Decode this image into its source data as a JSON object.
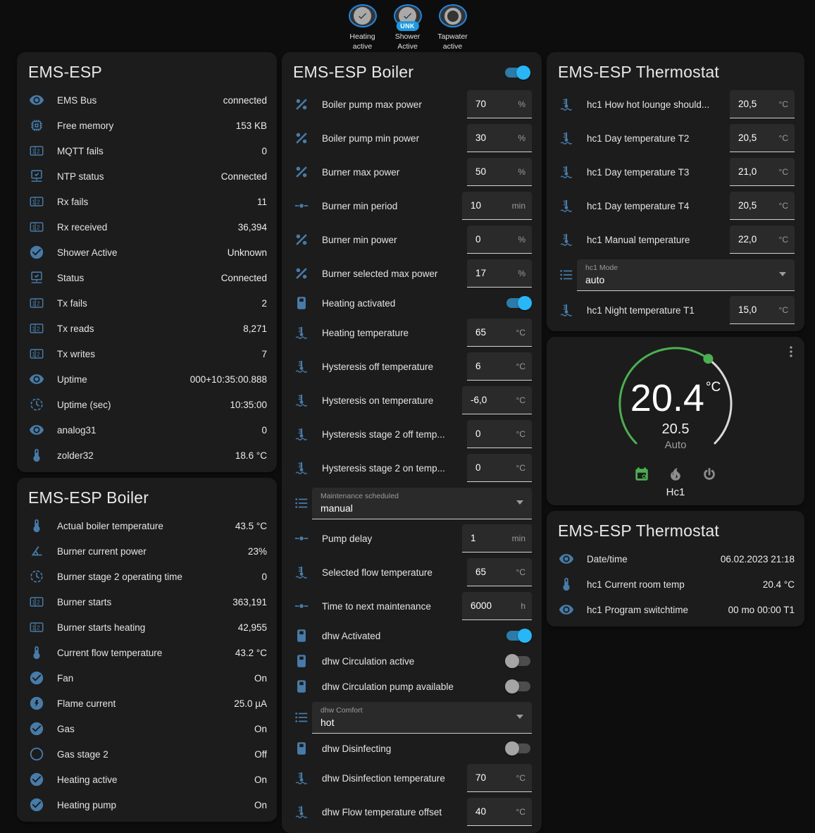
{
  "colors": {
    "page_background": "#0d0d0d",
    "card_background": "#1c1c1c",
    "icon_blue": "#477ba8",
    "badge_ring_blue": "#1e88e5",
    "badge_pill_blue": "#1e9ae0",
    "toggle_on_blue": "#29b6f6",
    "gauge_green": "#4caf50",
    "gauge_track_gray": "#d9d9d9"
  },
  "header_badges": [
    {
      "icon": "check",
      "line1": "Heating",
      "line2": "active"
    },
    {
      "icon": "check",
      "badge": "UNK",
      "line1": "Shower",
      "line2": "Active"
    },
    {
      "icon": "ring",
      "line1": "Tapwater",
      "line2": "active"
    }
  ],
  "cards": {
    "system": {
      "title": "EMS-ESP",
      "rows": [
        {
          "type": "sensor",
          "icon": "eye",
          "label": "EMS Bus",
          "value": "connected"
        },
        {
          "type": "sensor",
          "icon": "chip",
          "label": "Free memory",
          "value": "153 KB"
        },
        {
          "type": "sensor",
          "icon": "counter",
          "label": "MQTT fails",
          "value": "0"
        },
        {
          "type": "sensor",
          "icon": "network",
          "label": "NTP status",
          "value": "Connected"
        },
        {
          "type": "sensor",
          "icon": "counter",
          "label": "Rx fails",
          "value": "11"
        },
        {
          "type": "sensor",
          "icon": "counter",
          "label": "Rx received",
          "value": "36,394"
        },
        {
          "type": "sensor",
          "icon": "check-circle",
          "label": "Shower Active",
          "value": "Unknown"
        },
        {
          "type": "sensor",
          "icon": "network",
          "label": "Status",
          "value": "Connected"
        },
        {
          "type": "sensor",
          "icon": "counter",
          "label": "Tx fails",
          "value": "2"
        },
        {
          "type": "sensor",
          "icon": "counter",
          "label": "Tx reads",
          "value": "8,271"
        },
        {
          "type": "sensor",
          "icon": "counter",
          "label": "Tx writes",
          "value": "7"
        },
        {
          "type": "sensor",
          "icon": "eye",
          "label": "Uptime",
          "value": "000+10:35:00.888"
        },
        {
          "type": "sensor",
          "icon": "clock",
          "label": "Uptime (sec)",
          "value": "10:35:00"
        },
        {
          "type": "sensor",
          "icon": "eye",
          "label": "analog31",
          "value": "0"
        },
        {
          "type": "sensor",
          "icon": "thermometer",
          "label": "zolder32",
          "value": "18.6 °C"
        }
      ]
    },
    "boiler_sensors": {
      "title": "EMS-ESP Boiler",
      "rows": [
        {
          "type": "sensor",
          "icon": "thermometer",
          "label": "Actual boiler temperature",
          "value": "43.5 °C"
        },
        {
          "type": "sensor",
          "icon": "angle",
          "label": "Burner current power",
          "value": "23%"
        },
        {
          "type": "sensor",
          "icon": "clock",
          "label": "Burner stage 2 operating time",
          "value": "0"
        },
        {
          "type": "sensor",
          "icon": "counter",
          "label": "Burner starts",
          "value": "363,191"
        },
        {
          "type": "sensor",
          "icon": "counter",
          "label": "Burner starts heating",
          "value": "42,955"
        },
        {
          "type": "sensor",
          "icon": "thermometer",
          "label": "Current flow temperature",
          "value": "43.2 °C"
        },
        {
          "type": "sensor",
          "icon": "check-circle",
          "label": "Fan",
          "value": "On"
        },
        {
          "type": "sensor",
          "icon": "flash",
          "label": "Flame current",
          "value": "25.0 µA"
        },
        {
          "type": "sensor",
          "icon": "check-circle",
          "label": "Gas",
          "value": "On"
        },
        {
          "type": "sensor",
          "icon": "circle-outline",
          "label": "Gas stage 2",
          "value": "Off"
        },
        {
          "type": "sensor",
          "icon": "check-circle",
          "label": "Heating active",
          "value": "On"
        },
        {
          "type": "sensor",
          "icon": "check-circle",
          "label": "Heating pump",
          "value": "On"
        }
      ]
    },
    "boiler_controls": {
      "title": "EMS-ESP Boiler",
      "header_toggle_on": true,
      "rows": [
        {
          "type": "number",
          "icon": "percent",
          "label": "Boiler pump max power",
          "value": "70",
          "unit": "%"
        },
        {
          "type": "number",
          "icon": "percent",
          "label": "Boiler pump min power",
          "value": "30",
          "unit": "%"
        },
        {
          "type": "number",
          "icon": "percent",
          "label": "Burner max power",
          "value": "50",
          "unit": "%"
        },
        {
          "type": "number",
          "icon": "ray",
          "label": "Burner min period",
          "value": "10",
          "unit": "min",
          "wide": true
        },
        {
          "type": "number",
          "icon": "percent",
          "label": "Burner min power",
          "value": "0",
          "unit": "%"
        },
        {
          "type": "number",
          "icon": "percent",
          "label": "Burner selected max power",
          "value": "17",
          "unit": "%"
        },
        {
          "type": "toggle",
          "icon": "boiler",
          "label": "Heating activated",
          "on": true
        },
        {
          "type": "number",
          "icon": "coolant",
          "label": "Heating temperature",
          "value": "65",
          "unit": "°C"
        },
        {
          "type": "number",
          "icon": "coolant",
          "label": "Hysteresis off temperature",
          "value": "6",
          "unit": "°C"
        },
        {
          "type": "number",
          "icon": "coolant",
          "label": "Hysteresis on temperature",
          "value": "-6,0",
          "unit": "°C",
          "wide": true
        },
        {
          "type": "number",
          "icon": "coolant",
          "label": "Hysteresis stage 2 off temp...",
          "value": "0",
          "unit": "°C"
        },
        {
          "type": "number",
          "icon": "coolant",
          "label": "Hysteresis stage 2 on temp...",
          "value": "0",
          "unit": "°C"
        },
        {
          "type": "select",
          "icon": "list",
          "label": "Maintenance scheduled",
          "value": "manual"
        },
        {
          "type": "number",
          "icon": "ray",
          "label": "Pump delay",
          "value": "1",
          "unit": "min",
          "wide": true
        },
        {
          "type": "number",
          "icon": "coolant",
          "label": "Selected flow temperature",
          "value": "65",
          "unit": "°C"
        },
        {
          "type": "number",
          "icon": "ray",
          "label": "Time to next maintenance",
          "value": "6000",
          "unit": "h",
          "wide": true
        },
        {
          "type": "toggle",
          "icon": "boiler",
          "label": "dhw Activated",
          "on": true
        },
        {
          "type": "toggle",
          "icon": "boiler",
          "label": "dhw Circulation active",
          "on": false
        },
        {
          "type": "toggle",
          "icon": "boiler",
          "label": "dhw Circulation pump available",
          "on": false
        },
        {
          "type": "select",
          "icon": "list",
          "label": "dhw Comfort",
          "value": "hot"
        },
        {
          "type": "toggle",
          "icon": "boiler",
          "label": "dhw Disinfecting",
          "on": false
        },
        {
          "type": "number",
          "icon": "coolant",
          "label": "dhw Disinfection temperature",
          "value": "70",
          "unit": "°C"
        },
        {
          "type": "number",
          "icon": "coolant",
          "label": "dhw Flow temperature offset",
          "value": "40",
          "unit": "°C"
        }
      ]
    },
    "thermostat_controls": {
      "title": "EMS-ESP Thermostat",
      "rows": [
        {
          "type": "number",
          "icon": "coolant",
          "label": "hc1 How hot lounge should...",
          "value": "20,5",
          "unit": "°C"
        },
        {
          "type": "number",
          "icon": "coolant",
          "label": "hc1 Day temperature T2",
          "value": "20,5",
          "unit": "°C"
        },
        {
          "type": "number",
          "icon": "coolant",
          "label": "hc1 Day temperature T3",
          "value": "21,0",
          "unit": "°C"
        },
        {
          "type": "number",
          "icon": "coolant",
          "label": "hc1 Day temperature T4",
          "value": "20,5",
          "unit": "°C"
        },
        {
          "type": "number",
          "icon": "coolant",
          "label": "hc1 Manual temperature",
          "value": "22,0",
          "unit": "°C"
        },
        {
          "type": "select",
          "icon": "list",
          "label": "hc1 Mode",
          "value": "auto"
        },
        {
          "type": "number",
          "icon": "coolant",
          "label": "hc1 Night temperature T1",
          "value": "15,0",
          "unit": "°C"
        }
      ]
    },
    "gauge": {
      "current": "20.4",
      "unit": "°C",
      "target": "20.5",
      "mode": "Auto",
      "name": "Hc1"
    },
    "thermostat_sensors": {
      "title": "EMS-ESP Thermostat",
      "rows": [
        {
          "type": "sensor",
          "icon": "eye",
          "label": "Date/time",
          "value": "06.02.2023 21:18"
        },
        {
          "type": "sensor",
          "icon": "thermometer",
          "label": "hc1 Current room temp",
          "value": "20.4 °C"
        },
        {
          "type": "sensor",
          "icon": "eye",
          "label": "hc1 Program switchtime",
          "value": "00 mo 00:00 T1"
        }
      ]
    }
  }
}
